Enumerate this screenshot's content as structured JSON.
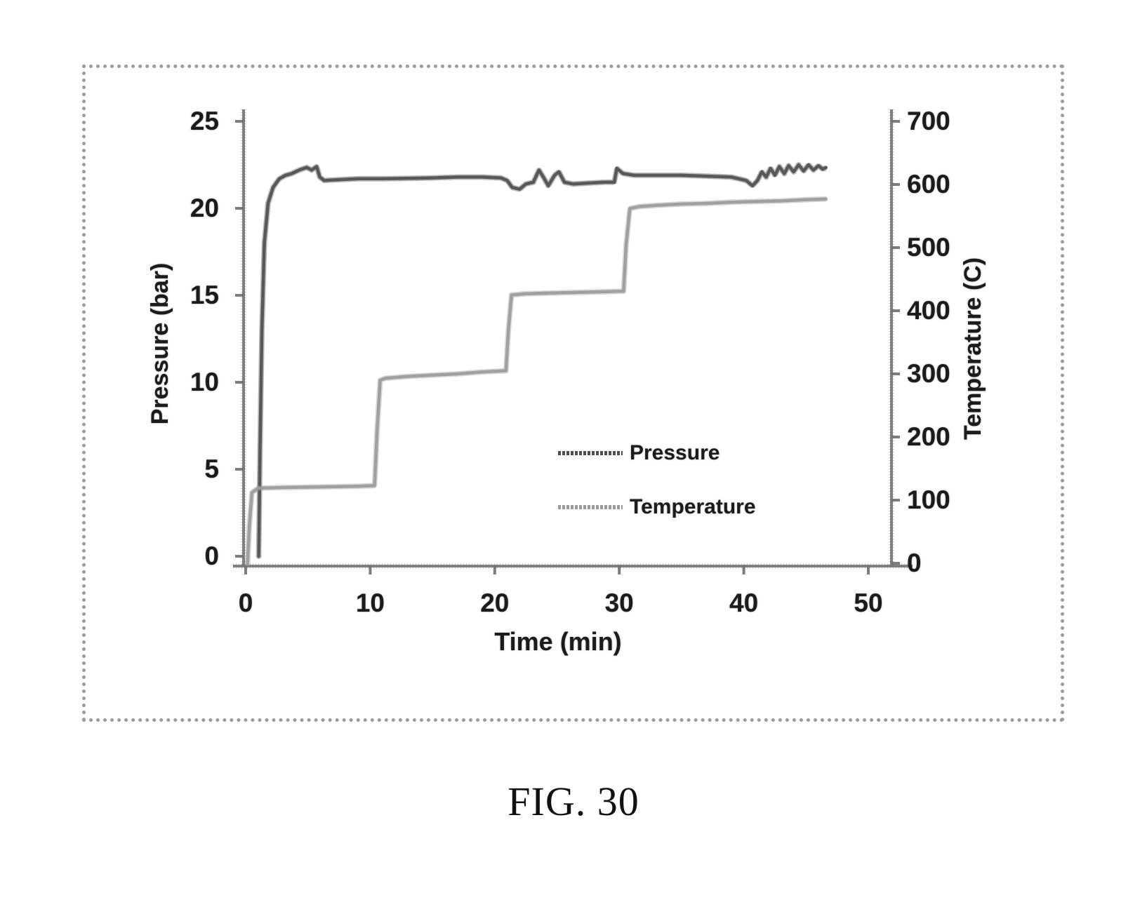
{
  "figure": {
    "caption": "FIG. 30"
  },
  "chart_data": {
    "type": "line",
    "title": "",
    "xlabel": "Time (min)",
    "ylabel_left": "Pressure (bar)",
    "ylabel_right": "Temperature (C)",
    "x_ticks": [
      0,
      10,
      20,
      30,
      40,
      50
    ],
    "y_ticks_left": [
      0,
      5,
      10,
      15,
      20,
      25
    ],
    "y_ticks_right": [
      0,
      100,
      200,
      300,
      400,
      500,
      600,
      700
    ],
    "xlim": [
      0,
      50
    ],
    "ylim_left": [
      0,
      25
    ],
    "ylim_right": [
      0,
      700
    ],
    "grid": false,
    "legend": {
      "position": "inside-middle-right",
      "items": [
        "Pressure",
        "Temperature"
      ]
    },
    "series": [
      {
        "name": "Pressure",
        "axis": "left",
        "unit": "bar",
        "color": "#4e4e4e",
        "points": [
          [
            1.05,
            0
          ],
          [
            1.15,
            6
          ],
          [
            1.3,
            13
          ],
          [
            1.5,
            18
          ],
          [
            1.8,
            20.3
          ],
          [
            2.2,
            21.2
          ],
          [
            2.7,
            21.7
          ],
          [
            3.2,
            21.9
          ],
          [
            3.7,
            22.0
          ],
          [
            4.3,
            22.2
          ],
          [
            4.9,
            22.35
          ],
          [
            5.3,
            22.2
          ],
          [
            5.7,
            22.4
          ],
          [
            5.95,
            21.8
          ],
          [
            6.3,
            21.6
          ],
          [
            7.5,
            21.65
          ],
          [
            9,
            21.7
          ],
          [
            11,
            21.7
          ],
          [
            13,
            21.72
          ],
          [
            15,
            21.75
          ],
          [
            17,
            21.8
          ],
          [
            19,
            21.8
          ],
          [
            20.5,
            21.75
          ],
          [
            21.0,
            21.6
          ],
          [
            21.4,
            21.2
          ],
          [
            22.0,
            21.1
          ],
          [
            22.5,
            21.4
          ],
          [
            23.1,
            21.5
          ],
          [
            23.55,
            22.2
          ],
          [
            23.9,
            21.8
          ],
          [
            24.3,
            21.3
          ],
          [
            24.8,
            21.9
          ],
          [
            25.15,
            22.1
          ],
          [
            25.6,
            21.5
          ],
          [
            26.3,
            21.4
          ],
          [
            27.5,
            21.45
          ],
          [
            28.8,
            21.5
          ],
          [
            29.6,
            21.5
          ],
          [
            29.8,
            22.3
          ],
          [
            30.3,
            22.0
          ],
          [
            31.2,
            21.9
          ],
          [
            33,
            21.9
          ],
          [
            35,
            21.9
          ],
          [
            37,
            21.85
          ],
          [
            39,
            21.8
          ],
          [
            40.2,
            21.6
          ],
          [
            40.7,
            21.3
          ],
          [
            41.1,
            21.6
          ],
          [
            41.45,
            22.1
          ],
          [
            41.8,
            21.8
          ],
          [
            42.15,
            22.3
          ],
          [
            42.5,
            21.9
          ],
          [
            42.85,
            22.4
          ],
          [
            43.25,
            22.0
          ],
          [
            43.6,
            22.45
          ],
          [
            44.0,
            22.1
          ],
          [
            44.4,
            22.5
          ],
          [
            44.8,
            22.15
          ],
          [
            45.2,
            22.5
          ],
          [
            45.6,
            22.2
          ],
          [
            46.0,
            22.45
          ],
          [
            46.35,
            22.25
          ],
          [
            46.6,
            22.35
          ]
        ]
      },
      {
        "name": "Temperature",
        "axis": "right",
        "unit": "C",
        "color": "#9a9a9a",
        "points": [
          [
            0.15,
            0
          ],
          [
            0.3,
            60
          ],
          [
            0.5,
            112
          ],
          [
            1.0,
            119
          ],
          [
            3,
            120
          ],
          [
            6,
            121
          ],
          [
            9,
            122
          ],
          [
            10.35,
            123
          ],
          [
            10.55,
            210
          ],
          [
            10.8,
            290
          ],
          [
            11.2,
            293
          ],
          [
            13,
            296
          ],
          [
            15,
            298
          ],
          [
            17,
            300
          ],
          [
            19,
            303
          ],
          [
            20.9,
            305
          ],
          [
            21.1,
            370
          ],
          [
            21.35,
            425
          ],
          [
            22.5,
            427
          ],
          [
            24.5,
            428
          ],
          [
            26.5,
            429
          ],
          [
            28.5,
            430
          ],
          [
            30.35,
            431
          ],
          [
            30.55,
            505
          ],
          [
            30.85,
            562
          ],
          [
            31.6,
            565
          ],
          [
            33,
            567
          ],
          [
            35,
            569
          ],
          [
            37,
            570
          ],
          [
            39,
            572
          ],
          [
            41,
            573
          ],
          [
            43,
            574
          ],
          [
            45,
            576
          ],
          [
            46.6,
            577
          ]
        ]
      }
    ]
  }
}
